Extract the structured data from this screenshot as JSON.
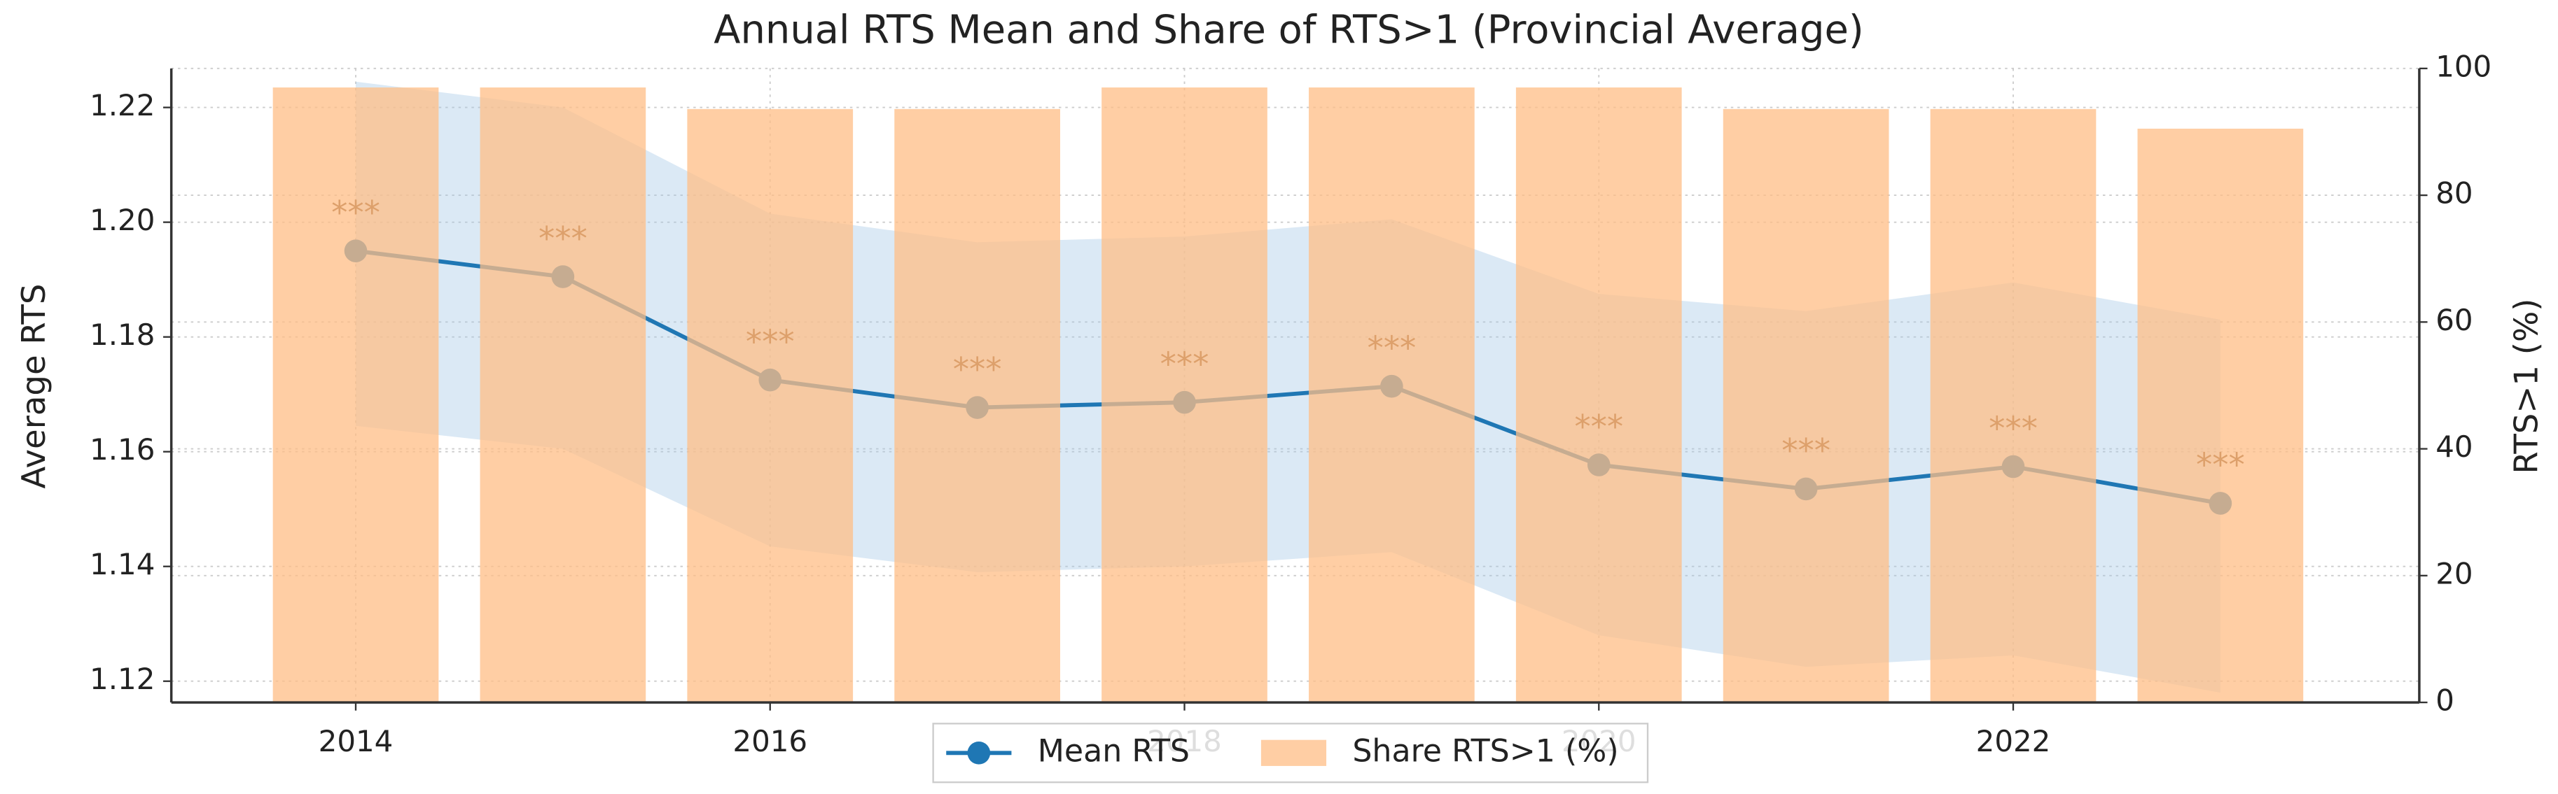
{
  "chart_data": {
    "type": "line_bar",
    "title": "Annual RTS Mean and Share of RTS>1 (Provincial Average)",
    "y_label": "Average RTS",
    "y2_label": "RTS>1 (%)",
    "x": [
      2014,
      2015,
      2016,
      2017,
      2018,
      2019,
      2020,
      2021,
      2022,
      2023
    ],
    "series": [
      {
        "name": "Mean RTS",
        "color": "#1f77b4",
        "type": "line",
        "values": [
          1.195,
          1.1905,
          1.1725,
          1.1677,
          1.1686,
          1.1714,
          1.1577,
          1.1535,
          1.1574,
          1.151
        ]
      },
      {
        "name": "Share RTS>1 (%)",
        "color": "#ffbe86",
        "type": "bar",
        "axis": "y2",
        "values": [
          97,
          97,
          93.6,
          93.6,
          97,
          97,
          97,
          93.6,
          93.6,
          90.5
        ]
      }
    ],
    "band": {
      "color": "#a6c8e6",
      "upper": [
        1.2245,
        1.22,
        1.2015,
        1.1965,
        1.1975,
        1.2005,
        1.1875,
        1.1845,
        1.1895,
        1.183
      ],
      "lower": [
        1.1645,
        1.1605,
        1.1435,
        1.139,
        1.14,
        1.1425,
        1.128,
        1.1225,
        1.1245,
        1.118
      ]
    },
    "annotations": [
      "***",
      "***",
      "***",
      "***",
      "***",
      "***",
      "***",
      "***",
      "***",
      "***"
    ],
    "xlim": [
      2013.11,
      2023.96
    ],
    "xticks": [
      2014,
      2016,
      2018,
      2020,
      2022
    ],
    "ylim": [
      1.1163,
      1.2268
    ],
    "yticks": [
      1.12,
      1.14,
      1.16,
      1.18,
      {
        "value": 1.2,
        "label": "1.20"
      },
      1.22
    ],
    "y2lim": [
      0,
      100
    ],
    "y2ticks": [
      0,
      20,
      40,
      60,
      80,
      100
    ],
    "grid": true,
    "legend": "lower center"
  }
}
